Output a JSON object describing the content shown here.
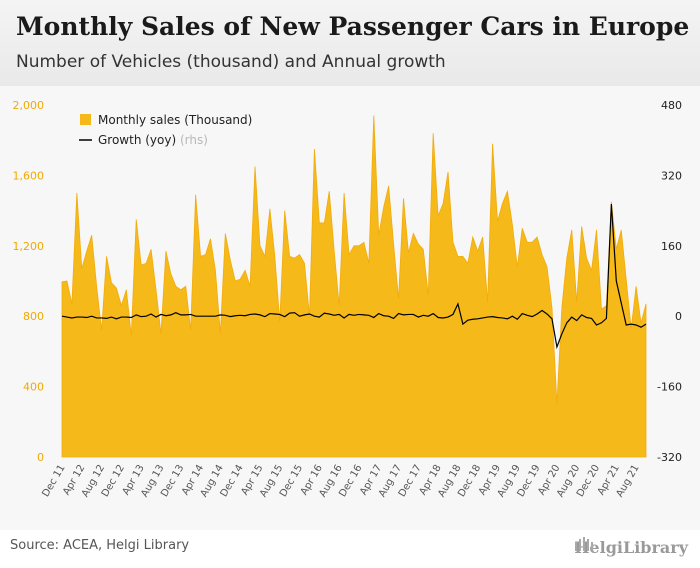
{
  "title": "Monthly Sales of New Passenger Cars in Europe",
  "subtitle": "Number of Vehicles (thousand) and Annual growth",
  "footer": {
    "source": "Source: ACEA, Helgi Library",
    "logo_text": "HelgiLibrary",
    "logo_icon": "helgi-library-logo-icon"
  },
  "colors": {
    "area": "#f6b91a",
    "area_stroke": "#f2ab0c",
    "line": "#000000",
    "left_axis_text": "#f2a900",
    "right_axis_text": "#222222",
    "header_bg": "#eeeeee",
    "plot_bg": "#f7f7f7"
  },
  "chart_data": {
    "type": "area",
    "title": "Monthly Sales of New Passenger Cars in Europe",
    "subtitle": "Number of Vehicles (thousand) and Annual growth",
    "x_tick_labels": [
      "Dec 11",
      "Apr 12",
      "Aug 12",
      "Dec 12",
      "Apr 13",
      "Aug 13",
      "Dec 13",
      "Apr 14",
      "Aug 14",
      "Dec 14",
      "Apr 15",
      "Aug 15",
      "Dec 15",
      "Apr 16",
      "Aug 16",
      "Dec 16",
      "Apr 17",
      "Aug 17",
      "Dec 17",
      "Apr 18",
      "Aug 18",
      "Dec 18",
      "Apr 19",
      "Aug 19",
      "Dec 19",
      "Apr 20",
      "Aug 20",
      "Dec 20",
      "Apr 21",
      "Aug 21"
    ],
    "y_left": {
      "ticks": [
        "0",
        "400",
        "800",
        "1,200",
        "1,600",
        "2,000"
      ],
      "range": [
        0,
        2000
      ]
    },
    "y_right": {
      "ticks": [
        "-320",
        "-160",
        "0",
        "160",
        "320",
        "480"
      ],
      "range": [
        -320,
        480
      ]
    },
    "grid": false,
    "legend_position": "top-left",
    "legend": {
      "sales_label": "Monthly sales (Thousand)",
      "growth_label": "Growth (yoy)",
      "growth_suffix": "(rhs)"
    },
    "series": [
      {
        "name": "Monthly sales (Thousand)",
        "axis": "left",
        "values": [
          995,
          1000,
          870,
          1500,
          1070,
          1170,
          1260,
          970,
          720,
          1140,
          990,
          960,
          860,
          950,
          690,
          1350,
          1090,
          1100,
          1180,
          950,
          700,
          1170,
          1040,
          970,
          950,
          970,
          720,
          1490,
          1140,
          1150,
          1240,
          1060,
          700,
          1270,
          1120,
          1000,
          1010,
          1060,
          970,
          1650,
          1200,
          1140,
          1410,
          1140,
          770,
          1400,
          1140,
          1130,
          1150,
          1100,
          800,
          1750,
          1330,
          1330,
          1510,
          1170,
          860,
          1500,
          1150,
          1200,
          1200,
          1220,
          1100,
          1940,
          1260,
          1420,
          1540,
          1210,
          900,
          1470,
          1160,
          1270,
          1210,
          1180,
          920,
          1840,
          1370,
          1440,
          1620,
          1220,
          1140,
          1140,
          1100,
          1250,
          1170,
          1250,
          880,
          1780,
          1340,
          1440,
          1510,
          1320,
          1080,
          1300,
          1220,
          1220,
          1250,
          1150,
          1080,
          850,
          300,
          850,
          1130,
          1290,
          880,
          1310,
          1130,
          1060,
          1290,
          840,
          860,
          1450,
          1180,
          1290,
          1010,
          730,
          970,
          760,
          870
        ],
        "color": "#f6b91a"
      },
      {
        "name": "Growth (yoy)",
        "axis": "right",
        "values": [
          0,
          -2,
          -4,
          -2,
          -2,
          -3,
          0,
          -4,
          -4,
          -5,
          -2,
          -6,
          -2,
          -2,
          -3,
          3,
          -1,
          0,
          5,
          -2,
          4,
          1,
          3,
          8,
          3,
          3,
          4,
          0,
          0,
          0,
          0,
          0,
          3,
          2,
          -1,
          1,
          2,
          1,
          4,
          5,
          3,
          -1,
          6,
          5,
          4,
          -1,
          7,
          8,
          0,
          3,
          5,
          0,
          -2,
          7,
          5,
          2,
          4,
          -4,
          4,
          2,
          4,
          3,
          2,
          -3,
          6,
          1,
          0,
          -5,
          6,
          3,
          4,
          4,
          -2,
          2,
          0,
          6,
          -3,
          -4,
          -2,
          4,
          28,
          -18,
          -9,
          -7,
          -6,
          -4,
          -2,
          -1,
          -3,
          -4,
          -6,
          0,
          -7,
          6,
          2,
          -1,
          5,
          13,
          5,
          -6,
          -70,
          -40,
          -15,
          -2,
          -10,
          3,
          -3,
          -5,
          -20,
          -15,
          -5,
          255,
          80,
          30,
          -20,
          -18,
          -20,
          -25,
          -18
        ],
        "color": "#000000"
      }
    ]
  }
}
